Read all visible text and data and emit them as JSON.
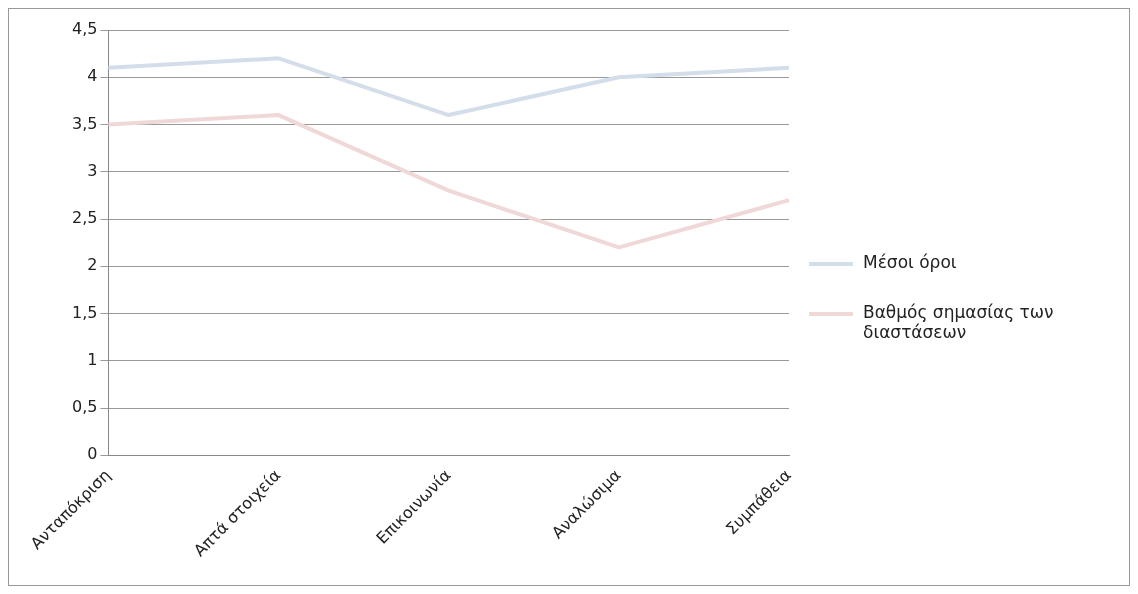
{
  "chart_data": {
    "type": "line",
    "categories": [
      "Ανταπόκριση",
      "Απτά στοιχεία",
      "Επικοινωνία",
      "Αναλώσιμα",
      "Συμπάθεια"
    ],
    "series": [
      {
        "name": "Μέσοι όροι",
        "color": "#d3deea",
        "values": [
          4.1,
          4.2,
          3.6,
          4.0,
          4.1
        ]
      },
      {
        "name": "Βαθμός σημασίας των διαστάσεων",
        "color": "#f0d8d8",
        "values": [
          3.5,
          3.6,
          2.8,
          2.2,
          2.7
        ]
      }
    ],
    "ylim": [
      0,
      4.5
    ],
    "yticks": [
      0,
      {
        "value": 0.5,
        "label": "0,5"
      },
      1,
      {
        "value": 1.5,
        "label": "1,5"
      },
      2,
      {
        "value": 2.5,
        "label": "2,5"
      },
      3,
      {
        "value": 3.5,
        "label": "3,5"
      },
      4,
      {
        "value": 4.5,
        "label": "4,5"
      }
    ],
    "grid": "y",
    "legend": "right",
    "marker": "none",
    "line_style": "solid"
  }
}
